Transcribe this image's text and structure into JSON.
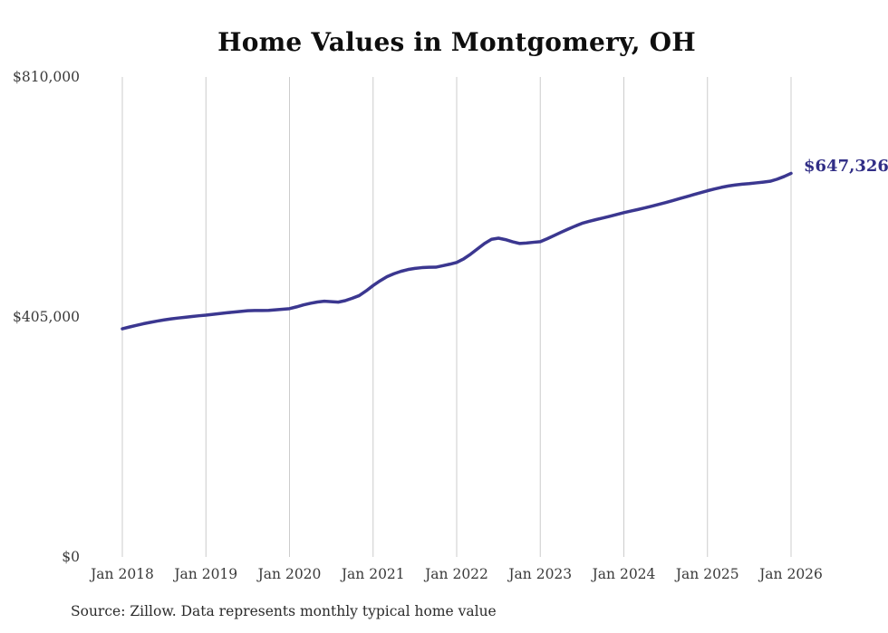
{
  "chart_data": {
    "type": "line",
    "title": "Home Values in Montgomery, OH",
    "source_note": "Source: Zillow. Data represents monthly typical home value",
    "end_label": "$647,326",
    "end_value": 647326,
    "x_start": "2018-01",
    "x_end": "2026-01",
    "frequency": "monthly",
    "ylim": [
      0,
      810000
    ],
    "grid": "vertical-only",
    "legend": "none",
    "line_color": "#3b3790",
    "end_label_color": "#312e86",
    "grid_color": "#cccccc",
    "tick_text_color": "#3a3a3a",
    "y_ticks": [
      {
        "label": "$810,000",
        "value": 810000
      },
      {
        "label": "$405,000",
        "value": 405000
      },
      {
        "label": "$0",
        "value": 0
      }
    ],
    "x_ticks": [
      {
        "label": "Jan 2018",
        "month": 0
      },
      {
        "label": "Jan 2019",
        "month": 12
      },
      {
        "label": "Jan 2020",
        "month": 24
      },
      {
        "label": "Jan 2021",
        "month": 36
      },
      {
        "label": "Jan 2022",
        "month": 48
      },
      {
        "label": "Jan 2023",
        "month": 60
      },
      {
        "label": "Jan 2024",
        "month": 72
      },
      {
        "label": "Jan 2025",
        "month": 84
      },
      {
        "label": "Jan 2026",
        "month": 96
      }
    ],
    "series": [
      {
        "name": "Typical home value (monthly, Jan 2018 - Jan 2026)",
        "values": [
          385000,
          388000,
          390800,
          393500,
          395800,
          398000,
          400000,
          401700,
          403200,
          404500,
          405800,
          407000,
          408000,
          409400,
          410700,
          412000,
          413200,
          414400,
          415500,
          415800,
          415900,
          416000,
          417000,
          418000,
          419000,
          422000,
          425300,
          428000,
          430200,
          431500,
          430800,
          430000,
          432500,
          436500,
          441000,
          449000,
          458000,
          466000,
          473000,
          478000,
          482000,
          485000,
          487000,
          488200,
          488800,
          489000,
          491500,
          494000,
          497000,
          503000,
          511000,
          520000,
          529000,
          536000,
          538000,
          535500,
          532000,
          529000,
          529800,
          531000,
          532000,
          537000,
          542500,
          548000,
          553200,
          558300,
          563000,
          566300,
          569300,
          572000,
          575000,
          578000,
          581000,
          583700,
          586300,
          589000,
          592000,
          595000,
          598000,
          601300,
          604700,
          608000,
          611400,
          614700,
          618000,
          621000,
          623700,
          626000,
          627800,
          629100,
          630000,
          631300,
          632600,
          634000,
          637500,
          642000,
          647326
        ]
      }
    ]
  }
}
